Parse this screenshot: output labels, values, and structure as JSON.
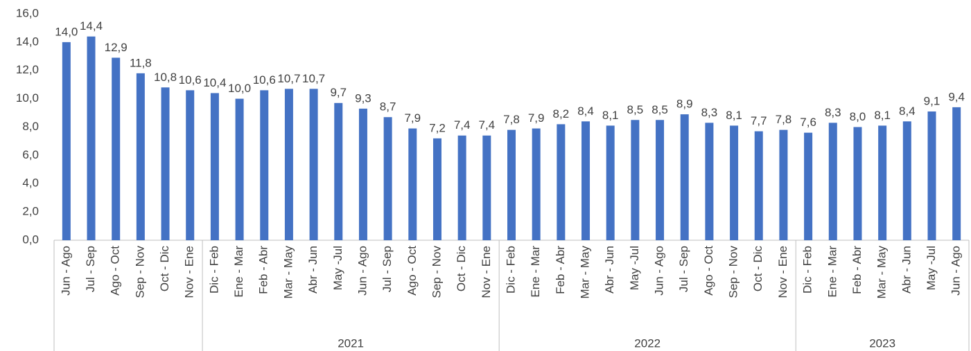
{
  "chart_data": {
    "type": "bar",
    "color": "#4472c4",
    "ylim": [
      0,
      16
    ],
    "yticks": [
      {
        "value": 0,
        "label": "0,0"
      },
      {
        "value": 2,
        "label": "2,0"
      },
      {
        "value": 4,
        "label": "4,0"
      },
      {
        "value": 6,
        "label": "6,0"
      },
      {
        "value": 8,
        "label": "8,0"
      },
      {
        "value": 10,
        "label": "10,0"
      },
      {
        "value": 12,
        "label": "12,0"
      },
      {
        "value": 14,
        "label": "14,0"
      },
      {
        "value": 16,
        "label": "16,0"
      }
    ],
    "groups": [
      {
        "name": null,
        "categories": [
          "Jun - Ago",
          "Jul - Sep",
          "Ago - Oct",
          "Sep - Nov",
          "Oct - Dic",
          "Nov - Ene"
        ],
        "values": [
          14.0,
          14.4,
          12.9,
          11.8,
          10.8,
          10.6
        ],
        "value_labels": [
          "14,0",
          "14,4",
          "12,9",
          "11,8",
          "10,8",
          "10,6"
        ]
      },
      {
        "name": "2021",
        "categories": [
          "Dic - Feb",
          "Ene - Mar",
          "Feb - Abr",
          "Mar - May",
          "Abr - Jun",
          "May -Jul",
          "Jun - Ago",
          "Jul - Sep",
          "Ago - Oct",
          "Sep - Nov",
          "Oct - Dic",
          "Nov - Ene"
        ],
        "values": [
          10.4,
          10.0,
          10.6,
          10.7,
          10.7,
          9.7,
          9.3,
          8.7,
          7.9,
          7.2,
          7.4,
          7.4
        ],
        "value_labels": [
          "10,4",
          "10,0",
          "10,6",
          "10,7",
          "10,7",
          "9,7",
          "9,3",
          "8,7",
          "7,9",
          "7,2",
          "7,4",
          "7,4"
        ]
      },
      {
        "name": "2022",
        "categories": [
          "Dic - Feb",
          "Ene - Mar",
          "Feb - Abr",
          "Mar - May",
          "Abr - Jun",
          "May -Jul",
          "Jun - Ago",
          "Jul - Sep",
          "Ago - Oct",
          "Sep - Nov",
          "Oct - Dic",
          "Nov - Ene"
        ],
        "values": [
          7.8,
          7.9,
          8.2,
          8.4,
          8.1,
          8.5,
          8.5,
          8.9,
          8.3,
          8.1,
          7.7,
          7.8
        ],
        "value_labels": [
          "7,8",
          "7,9",
          "8,2",
          "8,4",
          "8,1",
          "8,5",
          "8,5",
          "8,9",
          "8,3",
          "8,1",
          "7,7",
          "7,8"
        ]
      },
      {
        "name": "2023",
        "categories": [
          "Dic - Feb",
          "Ene - Mar",
          "Feb - Abr",
          "Mar - May",
          "Abr - Jun",
          "May -Jul",
          "Jun - Ago"
        ],
        "values": [
          7.6,
          8.3,
          8.0,
          8.1,
          8.4,
          9.1,
          9.4
        ],
        "value_labels": [
          "7,6",
          "8,3",
          "8,0",
          "8,1",
          "8,4",
          "9,1",
          "9,4"
        ]
      }
    ]
  }
}
